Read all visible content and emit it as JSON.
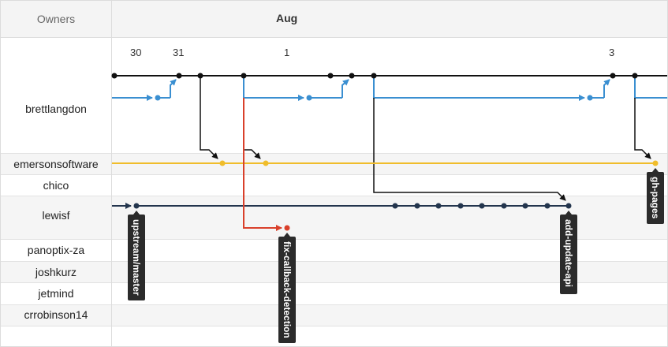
{
  "header": {
    "owners_label": "Owners",
    "month_label": "Aug"
  },
  "days": [
    "30",
    "31",
    "1",
    "3"
  ],
  "owners": [
    "brettlangdon",
    "emersonsoftware",
    "chico",
    "lewisf",
    "panoptix-za",
    "joshkurz",
    "jetmind",
    "crrobinson14"
  ],
  "branch_tags": [
    "upstream/master",
    "fix-callback-detection",
    "add-update-api",
    "gh-pages"
  ],
  "colors": {
    "brettlangdon_main": "#111111",
    "brettlangdon_branch": "#3a8fd1",
    "emersonsoftware": "#f0bd2b",
    "lewisf": "#23354d",
    "fix_branch": "#d9402b",
    "tag_bg": "#2b2b2b"
  }
}
